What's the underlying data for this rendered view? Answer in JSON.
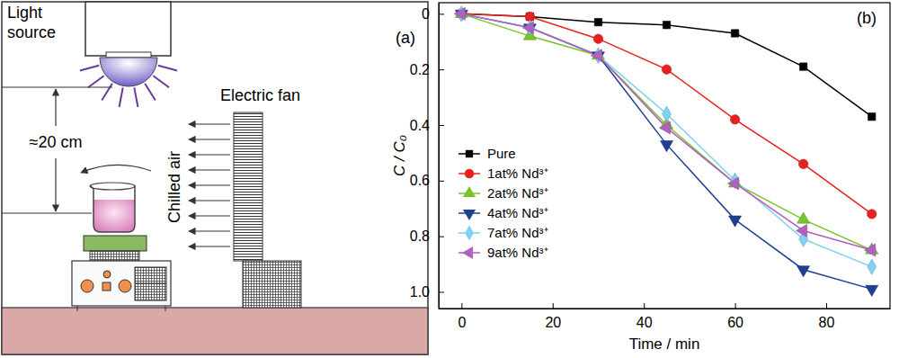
{
  "diagram": {
    "panel_label": "(a)",
    "light_source": [
      "Light",
      "source"
    ],
    "distance": "≈20 cm",
    "fan": "Electric fan",
    "air": "Chilled air"
  },
  "chart_data": {
    "type": "line",
    "title": "(b)",
    "x_label": "Time / min",
    "y_label": "C / C₀",
    "x": [
      0,
      15,
      30,
      45,
      60,
      75,
      90
    ],
    "xlim": [
      -5,
      94
    ],
    "xticks": [
      0,
      20,
      40,
      60,
      80
    ],
    "ylim": [
      1.06,
      -0.04
    ],
    "yticks": [
      0,
      0.2,
      0.4,
      0.6,
      0.8,
      {
        "value": 1,
        "label": "1.0"
      }
    ],
    "legend": "upper left",
    "series": [
      {
        "name": "Pure",
        "color": "#000000",
        "marker": "square",
        "values": [
          0,
          0.01,
          0.03,
          0.04,
          0.07,
          0.19,
          0.37
        ]
      },
      {
        "name": "1at% Nd³⁺",
        "color": "#e8201e",
        "marker": "circle",
        "values": [
          0,
          0.01,
          0.09,
          0.2,
          0.38,
          0.54,
          0.72
        ]
      },
      {
        "name": "2at% Nd³⁺",
        "color": "#78c428",
        "marker": "triangle-up",
        "values": [
          0,
          0.08,
          0.15,
          0.4,
          0.61,
          0.74,
          0.85
        ]
      },
      {
        "name": "4at% Nd³⁺",
        "color": "#1f3f92",
        "marker": "triangle-down",
        "values": [
          0,
          0.05,
          0.15,
          0.47,
          0.74,
          0.92,
          0.99
        ]
      },
      {
        "name": "7at% Nd³⁺",
        "color": "#80d2f0",
        "marker": "diamond",
        "values": [
          0,
          0.05,
          0.15,
          0.36,
          0.6,
          0.81,
          0.91
        ]
      },
      {
        "name": "9at% Nd³⁺",
        "color": "#b060c0",
        "marker": "triangle-left",
        "values": [
          0,
          0.05,
          0.15,
          0.41,
          0.61,
          0.78,
          0.85
        ]
      }
    ]
  }
}
